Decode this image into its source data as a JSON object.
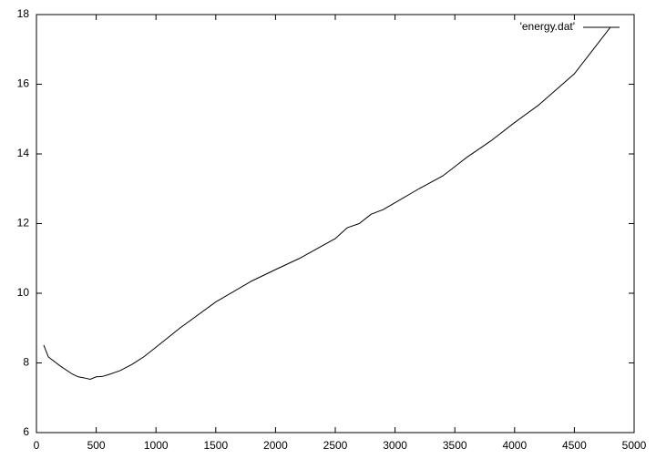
{
  "chart_data": {
    "type": "line",
    "x": [
      61,
      100,
      200,
      300,
      350,
      400,
      450,
      500,
      550,
      600,
      700,
      800,
      900,
      1000,
      1200,
      1500,
      1800,
      2000,
      2200,
      2500,
      2600,
      2700,
      2800,
      2900,
      3000,
      3200,
      3400,
      3600,
      3800,
      4000,
      4200,
      4500,
      4800
    ],
    "series": [
      {
        "name": "'energy.dat'",
        "color": "#000000",
        "values": [
          8.51,
          8.17,
          7.91,
          7.68,
          7.6,
          7.57,
          7.53,
          7.6,
          7.61,
          7.66,
          7.78,
          7.96,
          8.18,
          8.45,
          9.0,
          9.75,
          10.35,
          10.68,
          11.0,
          11.57,
          11.88,
          12.0,
          12.27,
          12.4,
          12.6,
          13.0,
          13.37,
          13.9,
          14.37,
          14.9,
          15.4,
          16.3,
          17.63
        ]
      }
    ],
    "xlim": [
      0,
      5000
    ],
    "xticks": [
      0,
      500,
      1000,
      1500,
      2000,
      2500,
      3000,
      3500,
      4000,
      4500,
      5000
    ],
    "ylim": [
      6,
      18
    ],
    "yticks": [
      6,
      8,
      10,
      12,
      14,
      16,
      18
    ],
    "grid": false,
    "legend": "top-right"
  }
}
